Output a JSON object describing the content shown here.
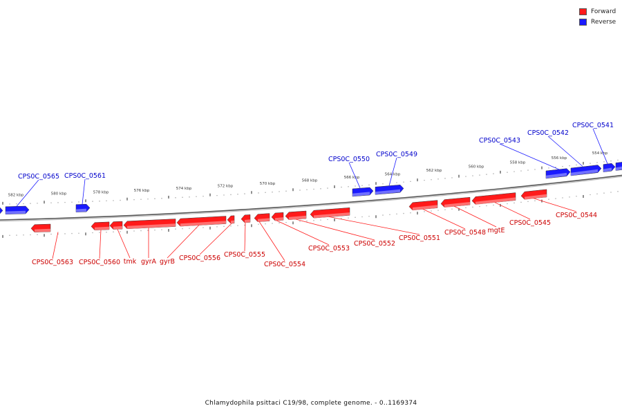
{
  "legend": [
    {
      "label": "Forward",
      "color": "#ff1a1a"
    },
    {
      "label": "Reverse",
      "color": "#1a1aff"
    }
  ],
  "footer": "Chlamydophila psittaci C19/98, complete genome. - 0..1169374",
  "colors": {
    "forward": "#ff1a1a",
    "forward_light": "#ff8080",
    "reverse": "#1a1aff",
    "reverse_light": "#8080ff",
    "forward_label": "#cc0000",
    "reverse_label": "#0000cc",
    "backbone": "#777777"
  },
  "kbp_ticks": [
    "582 kbp",
    "580 kbp",
    "578 kbp",
    "576 kbp",
    "574 kbp",
    "572 kbp",
    "570 kbp",
    "568 kbp",
    "566 kbp",
    "564 kbp",
    "562 kbp",
    "560 kbp",
    "558 kbp",
    "556 kbp",
    "554 kbp"
  ],
  "genes": [
    {
      "label": "CPS0C_0565",
      "strand": "reverse",
      "direction": "right"
    },
    {
      "label": "CPS0C_0561",
      "strand": "reverse",
      "direction": "right"
    },
    {
      "label": "CPS0C_0550",
      "strand": "reverse",
      "direction": "right"
    },
    {
      "label": "CPS0C_0549",
      "strand": "reverse",
      "direction": "right"
    },
    {
      "label": "CPS0C_0543",
      "strand": "reverse",
      "direction": "right"
    },
    {
      "label": "CPS0C_0542",
      "strand": "reverse",
      "direction": "right"
    },
    {
      "label": "CPS0C_0541",
      "strand": "reverse",
      "direction": "right"
    },
    {
      "label": "CPS0C_0563",
      "strand": "forward",
      "direction": "left"
    },
    {
      "label": "CPS0C_0560",
      "strand": "forward",
      "direction": "left"
    },
    {
      "label": "tmk",
      "strand": "forward",
      "direction": "left"
    },
    {
      "label": "gyrA",
      "strand": "forward",
      "direction": "left"
    },
    {
      "label": "gyrB",
      "strand": "forward",
      "direction": "left"
    },
    {
      "label": "CPS0C_0556",
      "strand": "forward",
      "direction": "left"
    },
    {
      "label": "CPS0C_0555",
      "strand": "forward",
      "direction": "left"
    },
    {
      "label": "CPS0C_0554",
      "strand": "forward",
      "direction": "left"
    },
    {
      "label": "CPS0C_0553",
      "strand": "forward",
      "direction": "left"
    },
    {
      "label": "CPS0C_0552",
      "strand": "forward",
      "direction": "left"
    },
    {
      "label": "CPS0C_0551",
      "strand": "forward",
      "direction": "left"
    },
    {
      "label": "CPS0C_0548",
      "strand": "forward",
      "direction": "left"
    },
    {
      "label": "mgtE",
      "strand": "forward",
      "direction": "left"
    },
    {
      "label": "CPS0C_0545",
      "strand": "forward",
      "direction": "left"
    },
    {
      "label": "CPS0C_0544",
      "strand": "forward",
      "direction": "left"
    }
  ]
}
